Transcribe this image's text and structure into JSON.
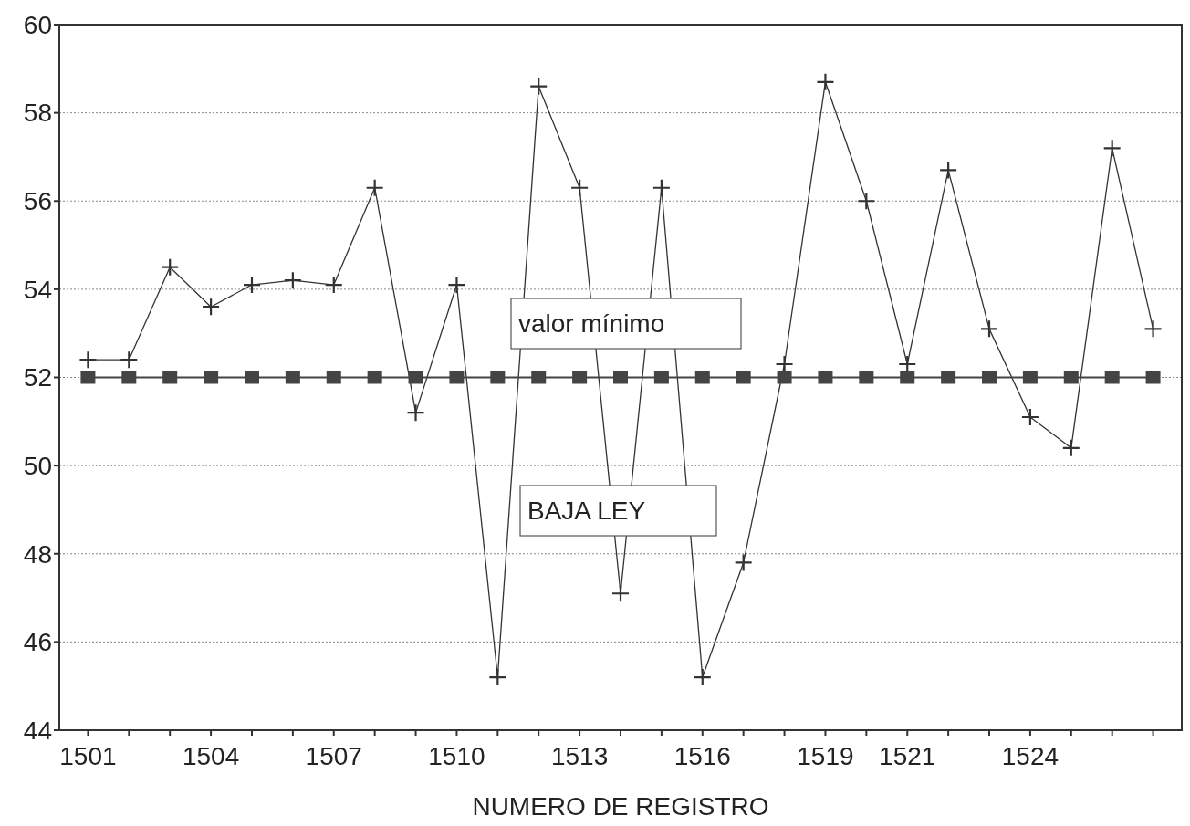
{
  "chart_data": {
    "type": "line",
    "xlabel": "NUMERO DE REGISTRO",
    "categories": [
      "1501",
      null,
      null,
      "1504",
      null,
      null,
      "1507",
      null,
      null,
      "1510",
      null,
      null,
      "1513",
      null,
      null,
      "1516",
      null,
      null,
      "1519",
      null,
      "1521",
      null,
      null,
      "1524",
      null,
      null,
      null
    ],
    "series": [
      {
        "color": "#333333",
        "marker": "cross",
        "line_style": "solid",
        "values": [
          52.4,
          52.4,
          54.5,
          53.6,
          54.1,
          54.2,
          54.1,
          56.3,
          51.2,
          54.1,
          45.2,
          58.6,
          56.3,
          47.1,
          56.3,
          45.2,
          47.8,
          52.3,
          58.7,
          56.0,
          52.3,
          56.7,
          53.1,
          51.1,
          50.4,
          57.2,
          53.1
        ]
      },
      {
        "color": "#444444",
        "marker": "square",
        "line_style": "solid",
        "values": [
          52,
          52,
          52,
          52,
          52,
          52,
          52,
          52,
          52,
          52,
          52,
          52,
          52,
          52,
          52,
          52,
          52,
          52,
          52,
          52,
          52,
          52,
          52,
          52,
          52,
          52,
          52
        ]
      }
    ],
    "ylim": [
      44,
      60
    ],
    "yticks": [
      44,
      46,
      48,
      50,
      52,
      54,
      56,
      58,
      60
    ],
    "grid": "y",
    "annotations": [
      "valor mínimo",
      "BAJA LEY"
    ]
  }
}
